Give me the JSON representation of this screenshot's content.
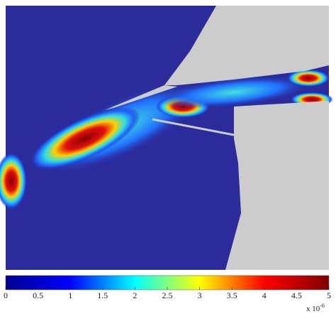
{
  "chart_data": {
    "type": "contour",
    "colorbar_lim": [
      0,
      5
    ],
    "colorbar_ticks": [
      0,
      0.5,
      1,
      1.5,
      2,
      2.5,
      3,
      3.5,
      4,
      4.5,
      5
    ],
    "colorbar_multiplier": "x 10",
    "colorbar_exponent": "-6",
    "colormap": [
      "#00008f",
      "#0000ff",
      "#00ffff",
      "#ffff00",
      "#ff0000",
      "#800000"
    ]
  }
}
